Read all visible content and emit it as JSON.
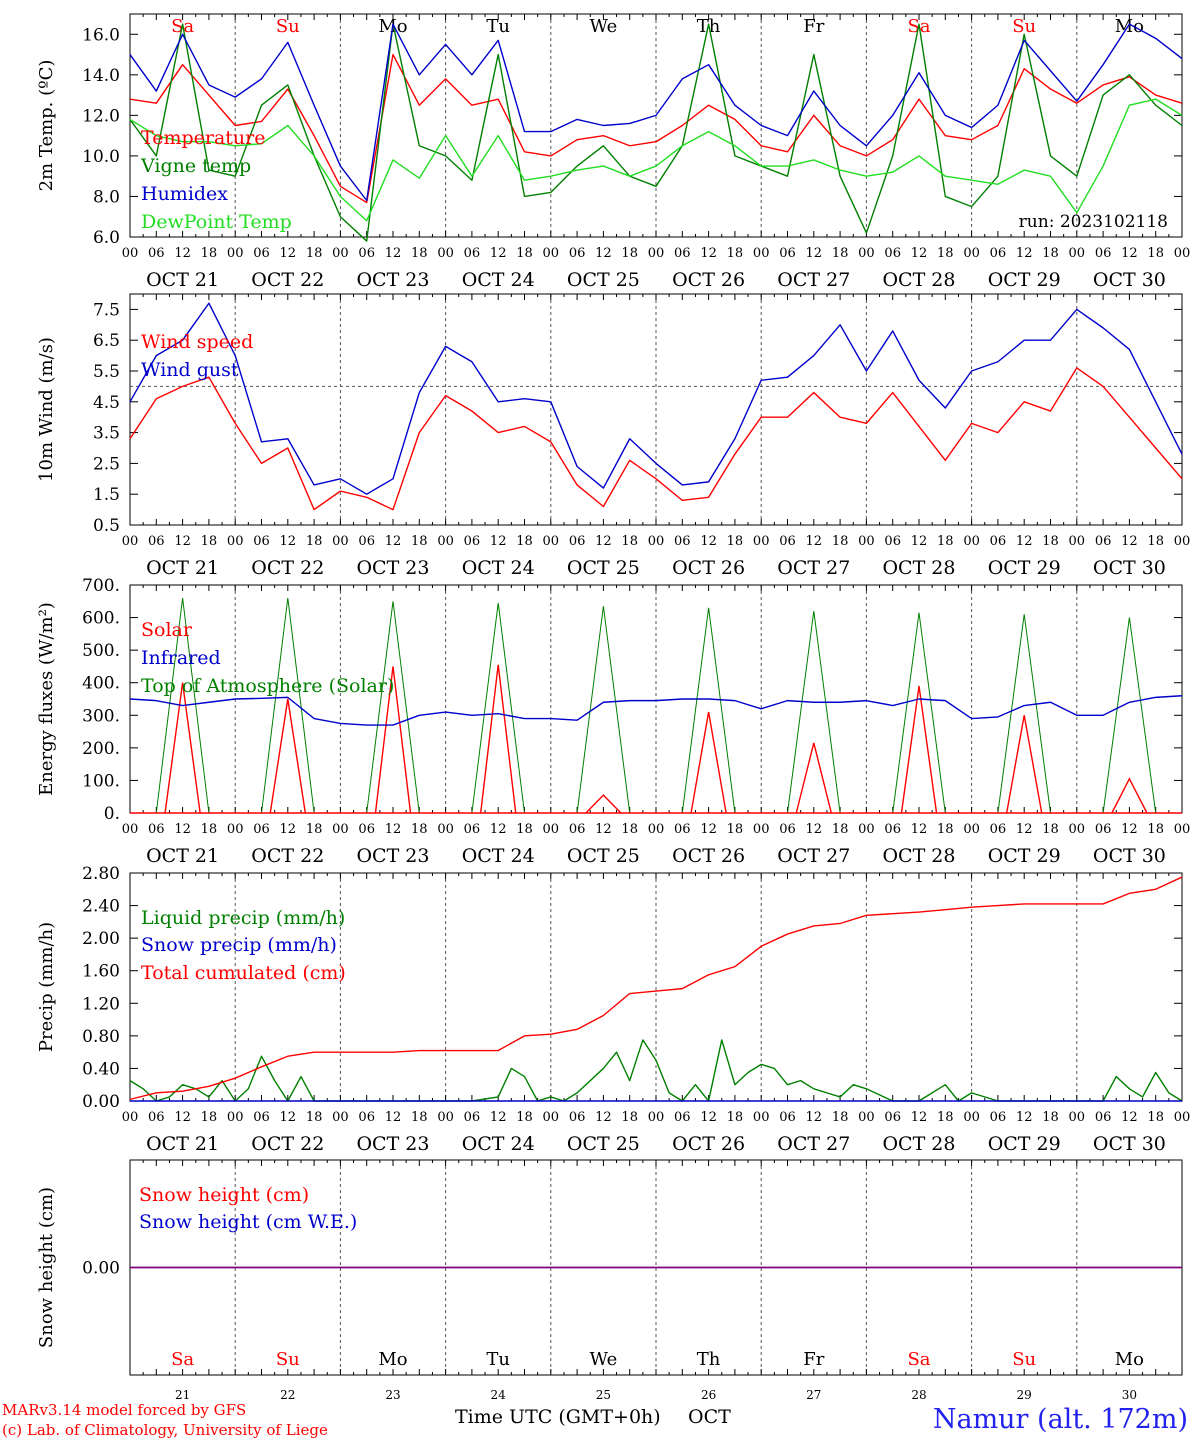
{
  "colors": {
    "temperature": "#ff0000",
    "vigne": "#008000",
    "humidex": "#0000cc",
    "dewpoint": "#22dd22",
    "weekend": "#ff0000",
    "weekday": "#000000",
    "snow_line": "#800080"
  },
  "time_axis": {
    "hours": [
      "00",
      "06",
      "12",
      "18"
    ],
    "end_hour": "00",
    "days": [
      "OCT 21",
      "OCT 22",
      "OCT 23",
      "OCT 24",
      "OCT 25",
      "OCT 26",
      "OCT 27",
      "OCT 28",
      "OCT 29",
      "OCT 30"
    ],
    "weekdays": [
      "Sa",
      "Su",
      "Mo",
      "Tu",
      "We",
      "Th",
      "Fr",
      "Sa",
      "Su",
      "Mo"
    ],
    "weekend_flags": [
      true,
      true,
      false,
      false,
      false,
      false,
      false,
      true,
      true,
      false
    ],
    "day_numbers": [
      "21",
      "22",
      "23",
      "24",
      "25",
      "26",
      "27",
      "28",
      "29",
      "30"
    ],
    "hours_per_day": 24,
    "total_hours": 240
  },
  "chart_data": [
    {
      "type": "line",
      "ylabel": "2m Temp. (ºC)",
      "ylim": [
        6,
        17
      ],
      "yticks": [
        6,
        8,
        10,
        12,
        14,
        16
      ],
      "ytick_labels": [
        "6.0",
        "8.0",
        "10.0",
        "12.0",
        "14.0",
        "16.0"
      ],
      "annotation": "run: 2023102118",
      "legend": [
        "Temperature",
        "Vigne temp",
        "Humidex",
        "DewPoint Temp"
      ],
      "series": [
        {
          "name": "Temperature",
          "color": "#ff0000",
          "x": [
            0,
            6,
            12,
            18,
            24,
            30,
            36,
            42,
            48,
            54,
            60,
            66,
            72,
            78,
            84,
            90,
            96,
            102,
            108,
            114,
            120,
            126,
            132,
            138,
            144,
            150,
            156,
            162,
            168,
            174,
            180,
            186,
            192,
            198,
            204,
            210,
            216,
            222,
            228,
            234,
            240
          ],
          "y": [
            12.8,
            12.6,
            14.5,
            13.0,
            11.5,
            11.7,
            13.3,
            11.0,
            8.5,
            7.7,
            15.0,
            12.5,
            13.8,
            12.5,
            12.8,
            10.2,
            10.0,
            10.8,
            11.0,
            10.5,
            10.7,
            11.5,
            12.5,
            11.8,
            10.5,
            10.2,
            12.0,
            10.5,
            10.0,
            10.8,
            12.8,
            11.0,
            10.8,
            11.5,
            14.3,
            13.3,
            12.6,
            13.5,
            13.9,
            13.0,
            12.6
          ]
        },
        {
          "name": "Vigne temp",
          "color": "#008000",
          "x": [
            0,
            6,
            12,
            18,
            24,
            30,
            36,
            42,
            48,
            54,
            60,
            66,
            72,
            78,
            84,
            90,
            96,
            102,
            108,
            114,
            120,
            126,
            132,
            138,
            144,
            150,
            156,
            162,
            168,
            174,
            180,
            186,
            192,
            198,
            204,
            210,
            216,
            222,
            228,
            234,
            240
          ],
          "y": [
            11.8,
            10.0,
            16.5,
            9.3,
            9.0,
            12.5,
            13.5,
            10.0,
            7.0,
            5.8,
            16.5,
            10.5,
            10.0,
            8.8,
            15.0,
            8.0,
            8.2,
            9.5,
            10.5,
            9.0,
            8.5,
            10.5,
            16.5,
            10.0,
            9.5,
            9.0,
            15.0,
            9.0,
            6.2,
            10.0,
            16.5,
            8.0,
            7.5,
            9.0,
            16.0,
            10.0,
            9.0,
            13.0,
            14.0,
            12.5,
            11.5
          ]
        },
        {
          "name": "Humidex",
          "color": "#0000cc",
          "x": [
            0,
            6,
            12,
            18,
            24,
            30,
            36,
            42,
            48,
            54,
            60,
            66,
            72,
            78,
            84,
            90,
            96,
            102,
            108,
            114,
            120,
            126,
            132,
            138,
            144,
            150,
            156,
            162,
            168,
            174,
            180,
            186,
            192,
            198,
            204,
            210,
            216,
            222,
            228,
            234,
            240
          ],
          "y": [
            15.0,
            13.2,
            16.0,
            13.5,
            12.9,
            13.8,
            15.6,
            12.5,
            9.5,
            7.8,
            16.5,
            14.0,
            15.5,
            14.0,
            15.7,
            11.2,
            11.2,
            11.8,
            11.5,
            11.6,
            12.0,
            13.8,
            14.5,
            12.5,
            11.5,
            11.0,
            13.2,
            11.5,
            10.5,
            12.0,
            14.1,
            12.0,
            11.4,
            12.5,
            15.7,
            14.2,
            12.7,
            14.5,
            16.5,
            15.8,
            14.8
          ]
        },
        {
          "name": "DewPoint Temp",
          "color": "#22dd22",
          "x": [
            0,
            6,
            12,
            18,
            24,
            30,
            36,
            42,
            48,
            54,
            60,
            66,
            72,
            78,
            84,
            90,
            96,
            102,
            108,
            114,
            120,
            126,
            132,
            138,
            144,
            150,
            156,
            162,
            168,
            174,
            180,
            186,
            192,
            198,
            204,
            210,
            216,
            222,
            228,
            234,
            240
          ],
          "y": [
            11.8,
            11.0,
            10.7,
            10.7,
            10.5,
            10.6,
            11.5,
            10.0,
            8.0,
            6.8,
            9.8,
            8.9,
            11.0,
            9.0,
            11.0,
            8.8,
            9.0,
            9.3,
            9.5,
            9.0,
            9.5,
            10.5,
            11.2,
            10.5,
            9.5,
            9.5,
            9.8,
            9.3,
            9.0,
            9.2,
            10.0,
            9.0,
            8.8,
            8.6,
            9.3,
            9.0,
            7.2,
            9.5,
            12.5,
            12.8,
            12.0
          ]
        }
      ]
    },
    {
      "type": "line",
      "ylabel": "10m Wind (m/s)",
      "ylim": [
        0.5,
        8.0
      ],
      "yticks": [
        0.5,
        1.5,
        2.5,
        3.5,
        4.5,
        5.5,
        6.5,
        7.5
      ],
      "ytick_labels": [
        "0.5",
        "1.5",
        "2.5",
        "3.5",
        "4.5",
        "5.5",
        "6.5",
        "7.5"
      ],
      "reference_line": 5.0,
      "legend": [
        "Wind speed",
        "Wind gust"
      ],
      "series": [
        {
          "name": "Wind speed",
          "color": "#ff0000",
          "x": [
            0,
            6,
            12,
            18,
            24,
            30,
            36,
            42,
            48,
            54,
            60,
            66,
            72,
            78,
            84,
            90,
            96,
            102,
            108,
            114,
            120,
            126,
            132,
            138,
            144,
            150,
            156,
            162,
            168,
            174,
            180,
            186,
            192,
            198,
            204,
            210,
            216,
            222,
            228,
            234,
            240
          ],
          "y": [
            3.3,
            4.6,
            5.0,
            5.3,
            3.8,
            2.5,
            3.0,
            1.0,
            1.6,
            1.4,
            1.0,
            3.5,
            4.7,
            4.2,
            3.5,
            3.7,
            3.2,
            1.8,
            1.1,
            2.6,
            2.0,
            1.3,
            1.4,
            2.8,
            4.0,
            4.0,
            4.8,
            4.0,
            3.8,
            4.8,
            3.7,
            2.6,
            3.8,
            3.5,
            4.5,
            4.2,
            5.6,
            5.0,
            4.0,
            3.0,
            2.0
          ]
        },
        {
          "name": "Wind gust",
          "color": "#0000cc",
          "x": [
            0,
            6,
            12,
            18,
            24,
            30,
            36,
            42,
            48,
            54,
            60,
            66,
            72,
            78,
            84,
            90,
            96,
            102,
            108,
            114,
            120,
            126,
            132,
            138,
            144,
            150,
            156,
            162,
            168,
            174,
            180,
            186,
            192,
            198,
            204,
            210,
            216,
            222,
            228,
            234,
            240
          ],
          "y": [
            4.5,
            6.0,
            6.5,
            7.7,
            6.0,
            3.2,
            3.3,
            1.8,
            2.0,
            1.5,
            2.0,
            4.8,
            6.3,
            5.8,
            4.5,
            4.6,
            4.5,
            2.4,
            1.7,
            3.3,
            2.5,
            1.8,
            1.9,
            3.3,
            5.2,
            5.3,
            6.0,
            7.0,
            5.5,
            6.8,
            5.2,
            4.3,
            5.5,
            5.8,
            6.5,
            6.5,
            7.5,
            6.9,
            6.2,
            4.5,
            2.8
          ]
        }
      ]
    },
    {
      "type": "line",
      "ylabel": "Energy fluxes (W/m²)",
      "ylim": [
        0,
        700
      ],
      "yticks": [
        0,
        100,
        200,
        300,
        400,
        500,
        600,
        700
      ],
      "ytick_labels": [
        "0.",
        "100.",
        "200.",
        "300.",
        "400.",
        "500.",
        "600.",
        "700."
      ],
      "legend": [
        "Solar",
        "Infrared",
        "Top of Atmosphere (Solar)"
      ],
      "toa_peaks": [
        660,
        660,
        650,
        645,
        635,
        630,
        620,
        615,
        610,
        600
      ],
      "solar_peaks": [
        400,
        350,
        450,
        455,
        55,
        310,
        215,
        390,
        300,
        105
      ],
      "series": [
        {
          "name": "Infrared",
          "color": "#0000cc",
          "x": [
            0,
            6,
            12,
            18,
            24,
            30,
            36,
            42,
            48,
            54,
            60,
            66,
            72,
            78,
            84,
            90,
            96,
            102,
            108,
            114,
            120,
            126,
            132,
            138,
            144,
            150,
            156,
            162,
            168,
            174,
            180,
            186,
            192,
            198,
            204,
            210,
            216,
            222,
            228,
            234,
            240
          ],
          "y": [
            350,
            345,
            330,
            340,
            350,
            352,
            355,
            290,
            275,
            270,
            270,
            300,
            310,
            300,
            305,
            290,
            290,
            285,
            340,
            345,
            345,
            350,
            350,
            345,
            320,
            345,
            340,
            340,
            345,
            330,
            350,
            345,
            290,
            295,
            330,
            340,
            300,
            300,
            340,
            355,
            360
          ]
        }
      ]
    },
    {
      "type": "line",
      "ylabel": "Precip (mm/h)",
      "ylim": [
        0,
        2.8
      ],
      "yticks": [
        0,
        0.4,
        0.8,
        1.2,
        1.6,
        2.0,
        2.4,
        2.8
      ],
      "ytick_labels": [
        "0.00",
        "0.40",
        "0.80",
        "1.20",
        "1.60",
        "2.00",
        "2.40",
        "2.80"
      ],
      "legend": [
        "Liquid precip (mm/h)",
        "Snow precip (mm/h)",
        "Total cumulated (cm)"
      ],
      "series": [
        {
          "name": "Liquid precip (mm/h)",
          "color": "#008000",
          "x": [
            0,
            3,
            6,
            9,
            12,
            15,
            18,
            21,
            24,
            27,
            30,
            33,
            36,
            39,
            42,
            45,
            48,
            54,
            60,
            66,
            72,
            78,
            84,
            87,
            90,
            93,
            96,
            99,
            102,
            108,
            111,
            114,
            117,
            120,
            123,
            126,
            129,
            132,
            135,
            138,
            141,
            144,
            147,
            150,
            153,
            156,
            159,
            162,
            165,
            168,
            174,
            180,
            186,
            189,
            192,
            198,
            204,
            210,
            216,
            222,
            225,
            228,
            231,
            234,
            237,
            240
          ],
          "y": [
            0.25,
            0.15,
            0.0,
            0.05,
            0.2,
            0.15,
            0.05,
            0.25,
            0.0,
            0.15,
            0.55,
            0.25,
            0.0,
            0.3,
            0.0,
            0.0,
            0.0,
            0.0,
            0.0,
            0.0,
            0.0,
            0.0,
            0.05,
            0.4,
            0.3,
            0.0,
            0.05,
            0.0,
            0.1,
            0.4,
            0.6,
            0.25,
            0.75,
            0.5,
            0.1,
            0.0,
            0.2,
            0.0,
            0.75,
            0.2,
            0.35,
            0.45,
            0.4,
            0.2,
            0.25,
            0.15,
            0.1,
            0.05,
            0.2,
            0.15,
            0.0,
            0.0,
            0.2,
            0.0,
            0.1,
            0.0,
            0.0,
            0.0,
            0.0,
            0.0,
            0.3,
            0.15,
            0.05,
            0.35,
            0.1,
            0.0
          ]
        },
        {
          "name": "Snow precip (mm/h)",
          "color": "#0000cc",
          "x": [
            0,
            240
          ],
          "y": [
            0,
            0
          ]
        },
        {
          "name": "Total cumulated (cm)",
          "color": "#ff0000",
          "x": [
            0,
            6,
            12,
            18,
            24,
            30,
            36,
            42,
            48,
            54,
            60,
            66,
            72,
            78,
            84,
            90,
            96,
            102,
            108,
            114,
            120,
            126,
            132,
            138,
            144,
            150,
            156,
            162,
            168,
            174,
            180,
            186,
            192,
            198,
            204,
            210,
            216,
            222,
            228,
            234,
            240
          ],
          "y": [
            0.02,
            0.1,
            0.12,
            0.18,
            0.28,
            0.42,
            0.55,
            0.6,
            0.6,
            0.6,
            0.6,
            0.62,
            0.62,
            0.62,
            0.62,
            0.8,
            0.82,
            0.88,
            1.05,
            1.32,
            1.35,
            1.38,
            1.55,
            1.65,
            1.9,
            2.05,
            2.15,
            2.18,
            2.28,
            2.3,
            2.32,
            2.35,
            2.38,
            2.4,
            2.42,
            2.42,
            2.42,
            2.42,
            2.55,
            2.6,
            2.75
          ]
        }
      ]
    },
    {
      "type": "line",
      "ylabel": "Snow height (cm)",
      "ylim": [
        -1,
        1
      ],
      "yticks": [
        0
      ],
      "ytick_labels": [
        "0.00"
      ],
      "legend": [
        "Snow height (cm)",
        "Snow height (cm W.E.)"
      ],
      "series": [
        {
          "name": "Snow height (cm)",
          "color": "#ff0000",
          "x": [
            0,
            240
          ],
          "y": [
            0,
            0
          ]
        },
        {
          "name": "Snow height (cm W.E.)",
          "color": "#0000cc",
          "x": [
            0,
            240
          ],
          "y": [
            0,
            0
          ]
        }
      ]
    }
  ],
  "footer": {
    "model_line1": "MARv3.14 model forced by GFS",
    "model_line2": "(c) Lab. of Climatology, University of Liege",
    "time_label": "Time UTC (GMT+0h)",
    "month_label": "OCT",
    "station": "Namur (alt. 172m)"
  }
}
